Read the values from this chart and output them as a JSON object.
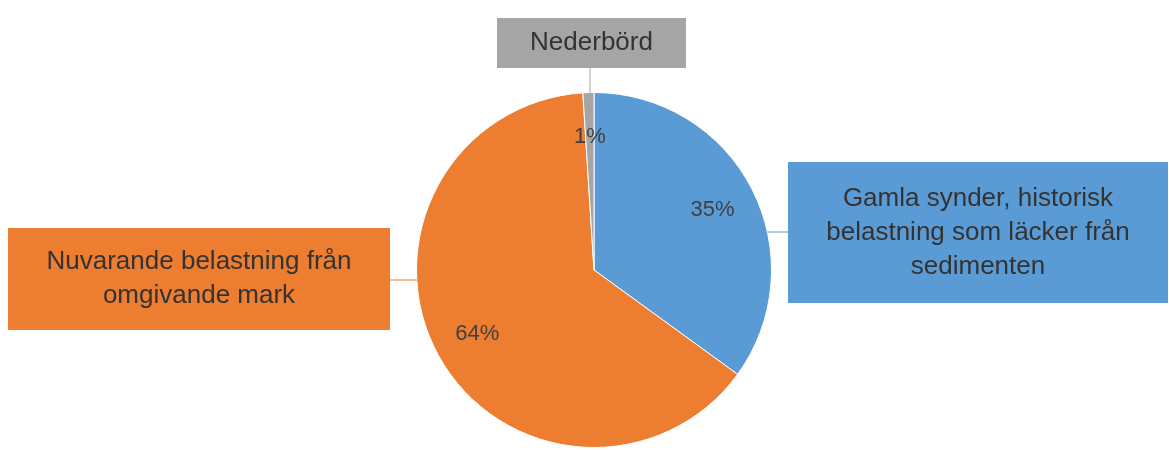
{
  "chart_data": {
    "type": "pie",
    "categories": [
      "Gamla synder, historisk belastning som läcker från sedimenten",
      "Nuvarande belastning från omgivande mark",
      "Nederbörd"
    ],
    "values": [
      35,
      64,
      1
    ],
    "colors": [
      "#5b9bd5",
      "#ed7d31",
      "#a5a5a5"
    ],
    "value_labels": [
      "35%",
      "64%",
      "1%"
    ]
  }
}
